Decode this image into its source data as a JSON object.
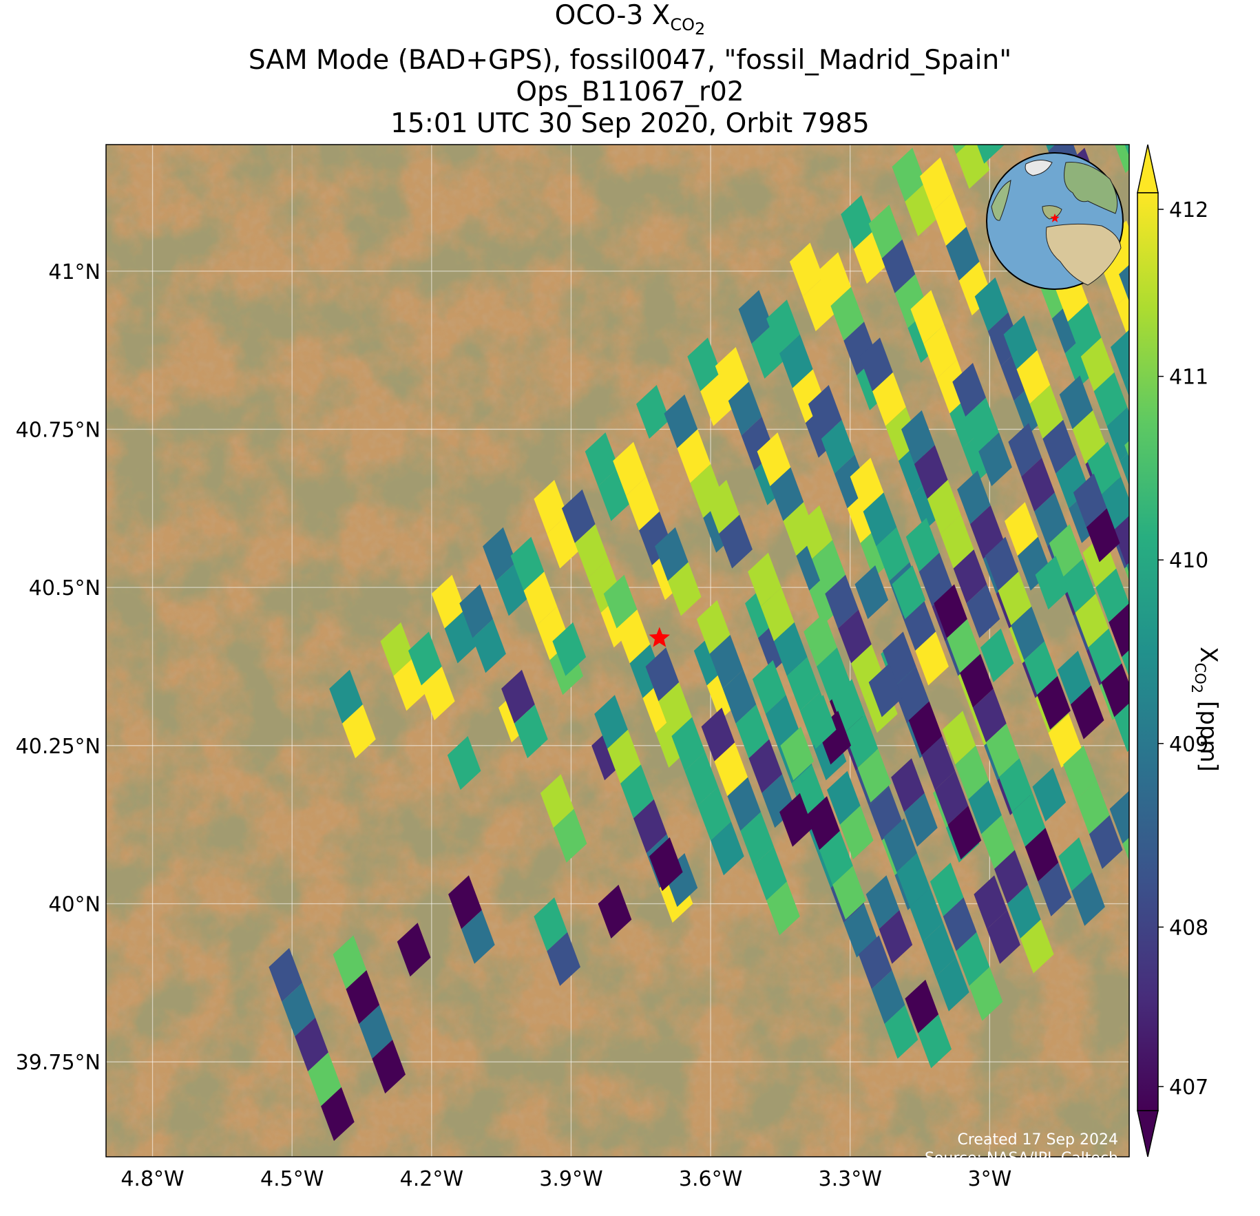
{
  "title": {
    "line1_prefix": "OCO-3 X",
    "line1_sub": "CO",
    "line1_sub2": "2",
    "line2": "SAM Mode (BAD+GPS), fossil0047, \"fossil_Madrid_Spain\"",
    "line3": "Ops_B11067_r02",
    "line4": "15:01 UTC 30 Sep 2020, Orbit 7985"
  },
  "map": {
    "lon_range": [
      -4.9,
      -2.7
    ],
    "lat_range": [
      39.6,
      41.2
    ],
    "lon_ticks": [
      -4.8,
      -4.5,
      -4.2,
      -3.9,
      -3.6,
      -3.3,
      -3.0
    ],
    "lon_tick_labels": [
      "4.8°W",
      "4.5°W",
      "4.2°W",
      "3.9°W",
      "3.6°W",
      "3.3°W",
      "3°W"
    ],
    "lat_ticks": [
      41.0,
      40.75,
      40.5,
      40.25,
      40.0,
      39.75
    ],
    "lat_tick_labels": [
      "41°N",
      "40.75°N",
      "40.5°N",
      "40.25°N",
      "40°N",
      "39.75°N"
    ],
    "target_marker": {
      "lon": -3.71,
      "lat": 40.42,
      "color": "#ff0000"
    },
    "grid": true
  },
  "colorbar": {
    "label_prefix": "X",
    "label_sub": "CO",
    "label_sub2": "2",
    "label_suffix": " [ppm]",
    "min": 407,
    "max": 412,
    "ticks": [
      407,
      408,
      409,
      410,
      411,
      412
    ],
    "extend": "both",
    "colormap": "viridis"
  },
  "credit": {
    "line1": "Created 17 Sep 2024",
    "line2": "Source: NASA/JPL-Caltech"
  }
}
